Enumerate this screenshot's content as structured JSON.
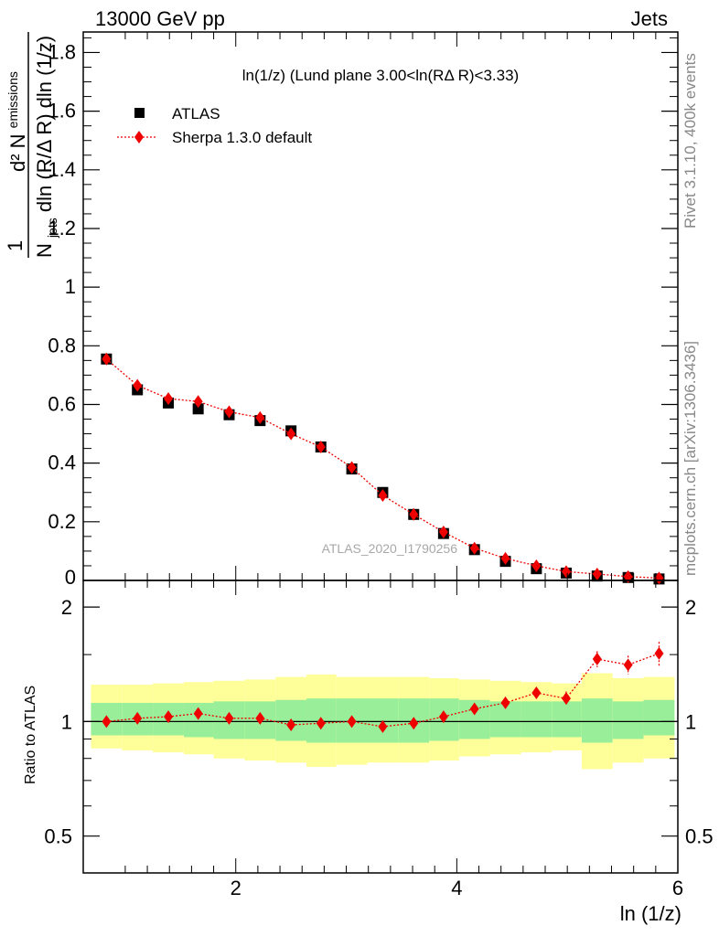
{
  "header": {
    "left": "13000 GeV pp",
    "right": "Jets"
  },
  "side_labels": {
    "rivet": "Rivet 3.1.10,  400k events",
    "mcplots": "mcplots.cern.ch [arXiv:1306.3436]"
  },
  "chart_data": {
    "type": "scatter",
    "title": "ln(1/z) (Lund plane 3.00<ln(RΔ R)<3.33)",
    "analysis_label": "ATLAS_2020_I1790256",
    "xlabel": "ln (1/z)",
    "ylabel": {
      "fraction_top": "d² N",
      "fraction_top_sub": "emissions",
      "fraction_bottom": "N",
      "fraction_bottom_sub": "jets",
      "fraction_bottom_rest": "dln (R/Δ R) dln (1/z)",
      "prefix": "1"
    },
    "ratio_ylabel": "Ratio to ATLAS",
    "xlim": [
      0.62,
      6.0
    ],
    "ylim": [
      0,
      1.87
    ],
    "ratio_ylim": [
      0.4,
      2.35
    ],
    "ratio_scale": "log",
    "grid": false,
    "legend_position": "top-left",
    "x_ticks": [
      2,
      4,
      6
    ],
    "y_ticks": [
      0.2,
      0.4,
      0.6,
      0.8,
      1,
      1.2,
      1.4,
      1.6,
      1.8
    ],
    "y_tick_labels": [
      "0.2",
      "0.4",
      "0.6",
      "0.8",
      "1",
      "1.2",
      "1.4",
      "1.6",
      "1.8"
    ],
    "y_zero_label": "0",
    "ratio_ticks": [
      0.5,
      1,
      2
    ],
    "ratio_tick_labels": [
      "0.5",
      "1",
      "2"
    ],
    "x": [
      0.83,
      1.11,
      1.39,
      1.66,
      1.94,
      2.22,
      2.5,
      2.77,
      3.05,
      3.33,
      3.61,
      3.88,
      4.16,
      4.44,
      4.72,
      4.99,
      5.27,
      5.55,
      5.83
    ],
    "bin_edges": [
      0.69,
      0.97,
      1.25,
      1.53,
      1.8,
      2.08,
      2.36,
      2.64,
      2.91,
      3.19,
      3.47,
      3.75,
      4.02,
      4.3,
      4.58,
      4.86,
      5.13,
      5.41,
      5.69,
      5.97
    ],
    "series": [
      {
        "name": "ATLAS",
        "marker": "square",
        "color": "#000000",
        "values": [
          0.755,
          0.65,
          0.605,
          0.585,
          0.565,
          0.545,
          0.51,
          0.455,
          0.38,
          0.3,
          0.225,
          0.16,
          0.105,
          0.065,
          0.04,
          0.025,
          0.015,
          0.01,
          0.005
        ]
      },
      {
        "name": "Sherpa 1.3.0 default",
        "marker": "diamond",
        "line": "dotted",
        "color": "#ee0000",
        "values": [
          0.755,
          0.665,
          0.62,
          0.61,
          0.575,
          0.555,
          0.5,
          0.455,
          0.385,
          0.29,
          0.225,
          0.165,
          0.11,
          0.075,
          0.05,
          0.03,
          0.022,
          0.013,
          0.008
        ]
      }
    ],
    "ratio": {
      "reference_line": 1,
      "values": [
        1.0,
        1.02,
        1.03,
        1.05,
        1.02,
        1.02,
        0.98,
        0.99,
        1.0,
        0.97,
        0.99,
        1.03,
        1.08,
        1.12,
        1.19,
        1.15,
        1.46,
        1.41,
        1.51
      ],
      "errors": [
        0,
        0,
        0,
        0,
        0,
        0,
        0,
        0,
        0,
        0,
        0,
        0,
        0.02,
        0.03,
        0.04,
        0.05,
        0.07,
        0.08,
        0.11
      ],
      "band_inner_lo": [
        0.92,
        0.92,
        0.92,
        0.91,
        0.9,
        0.9,
        0.89,
        0.88,
        0.88,
        0.88,
        0.88,
        0.89,
        0.9,
        0.91,
        0.91,
        0.91,
        0.88,
        0.9,
        0.92
      ],
      "band_inner_hi": [
        1.12,
        1.12,
        1.12,
        1.12,
        1.13,
        1.13,
        1.14,
        1.15,
        1.15,
        1.15,
        1.15,
        1.15,
        1.14,
        1.13,
        1.13,
        1.13,
        1.15,
        1.13,
        1.14
      ],
      "band_outer_lo": [
        0.85,
        0.84,
        0.83,
        0.82,
        0.8,
        0.79,
        0.78,
        0.76,
        0.77,
        0.78,
        0.78,
        0.79,
        0.81,
        0.82,
        0.83,
        0.84,
        0.75,
        0.78,
        0.8
      ],
      "band_outer_hi": [
        1.25,
        1.25,
        1.26,
        1.27,
        1.28,
        1.29,
        1.31,
        1.33,
        1.31,
        1.31,
        1.31,
        1.3,
        1.29,
        1.28,
        1.27,
        1.26,
        1.34,
        1.3,
        1.31
      ],
      "band_inner_color": "#99ee99",
      "band_outer_color": "#ffff99"
    }
  }
}
